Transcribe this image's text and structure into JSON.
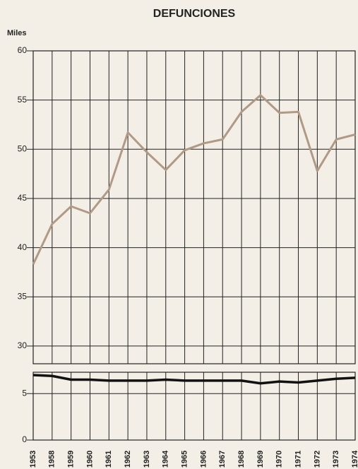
{
  "chart_data": [
    {
      "type": "line",
      "title": "DEFUNCIONES",
      "y_label": "Miles",
      "series": [
        {
          "color": "#b09a86",
          "values": [
            38.3,
            42.4,
            44.2,
            43.5,
            45.9,
            51.7,
            49.7,
            47.9,
            49.9,
            50.6,
            51.0,
            53.8,
            55.5,
            53.7,
            53.8,
            47.8,
            51.0,
            51.5
          ]
        }
      ],
      "ylim": [
        28.2,
        60
      ],
      "yticks": [
        30,
        35,
        40,
        45,
        50,
        55,
        60
      ],
      "grid": true
    },
    {
      "type": "line",
      "categories": [
        "1953",
        "1958",
        "1959",
        "1960",
        "1961",
        "1962",
        "1963",
        "1964",
        "1965",
        "1966",
        "1967",
        "1968",
        "1969",
        "1970",
        "1971",
        "1972",
        "1973",
        "1974"
      ],
      "series": [
        {
          "color": "#111111",
          "values": [
            7.0,
            6.9,
            6.5,
            6.5,
            6.4,
            6.4,
            6.4,
            6.5,
            6.4,
            6.4,
            6.4,
            6.4,
            6.1,
            6.3,
            6.2,
            6.4,
            6.6,
            6.7
          ]
        }
      ],
      "ylim": [
        0,
        7.3
      ],
      "yticks": [
        0,
        5
      ],
      "grid": true
    }
  ]
}
